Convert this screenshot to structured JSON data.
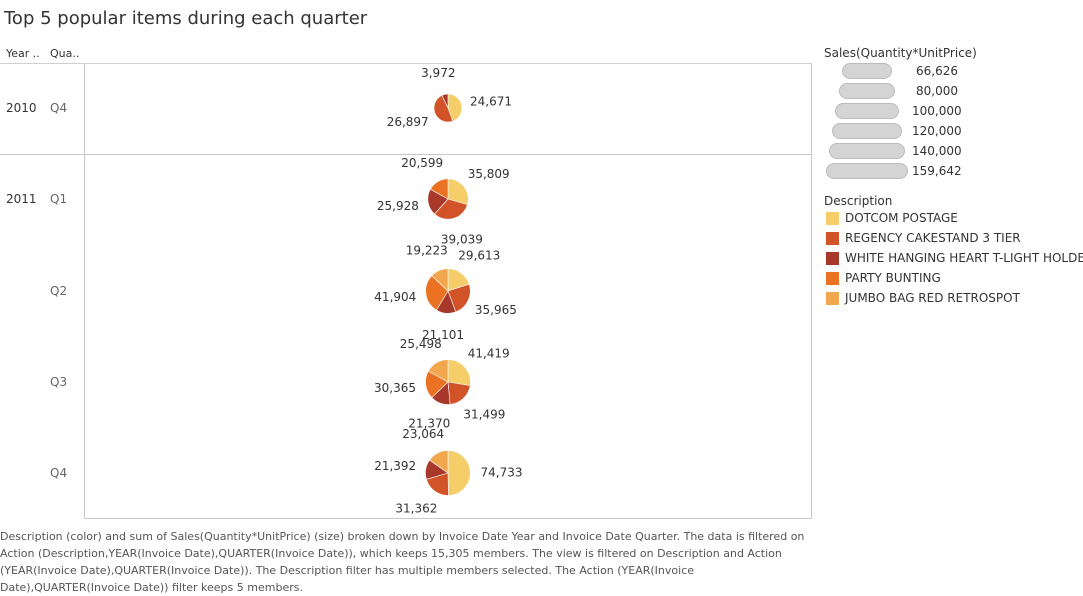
{
  "title": "Top 5 popular items during each quarter",
  "columns": {
    "year": "Year ..",
    "quarter": "Qua.."
  },
  "colors": {
    "DOTCOM POSTAGE": "#f5ce6a",
    "REGENCY CAKESTAND 3 TIER": "#d25327",
    "WHITE HANGING HEART T-LIGHT HOLDER": "#a8392a",
    "PARTY BUNTING": "#ea7222",
    "JUMBO BAG RED RETROSPOT": "#f2a64e"
  },
  "size_legend": {
    "title": "Sales(Quantity*UnitPrice)",
    "values": [
      "66,626",
      "80,000",
      "100,000",
      "120,000",
      "140,000",
      "159,642"
    ]
  },
  "color_legend": {
    "title": "Description",
    "items": [
      "DOTCOM POSTAGE",
      "REGENCY CAKESTAND 3 TIER",
      "WHITE HANGING HEART T-LIGHT HOLDER",
      "PARTY BUNTING",
      "JUMBO BAG RED RETROSPOT"
    ]
  },
  "chart_data": {
    "type": "pie",
    "title": "Top 5 popular items during each quarter",
    "size_measure": "Sales(Quantity*UnitPrice)",
    "color_dimension": "Description",
    "rows": [
      {
        "year": "2010",
        "quarter": "Q4",
        "slices": [
          {
            "name": "DOTCOM POSTAGE",
            "value": 24671,
            "label": "24,671"
          },
          {
            "name": "REGENCY CAKESTAND 3 TIER",
            "value": 26897,
            "label": "26,897"
          },
          {
            "name": "WHITE HANGING HEART T-LIGHT HOLDER",
            "value": 3972,
            "label": "3,972"
          }
        ]
      },
      {
        "year": "2011",
        "quarter": "Q1",
        "slices": [
          {
            "name": "DOTCOM POSTAGE",
            "value": 35809,
            "label": "35,809"
          },
          {
            "name": "REGENCY CAKESTAND 3 TIER",
            "value": 39039,
            "label": "39,039"
          },
          {
            "name": "WHITE HANGING HEART T-LIGHT HOLDER",
            "value": 25928,
            "label": "25,928"
          },
          {
            "name": "PARTY BUNTING",
            "value": 20599,
            "label": "20,599"
          }
        ]
      },
      {
        "year": "",
        "quarter": "Q2",
        "slices": [
          {
            "name": "DOTCOM POSTAGE",
            "value": 29613,
            "label": "29,613"
          },
          {
            "name": "REGENCY CAKESTAND 3 TIER",
            "value": 35965,
            "label": "35,965"
          },
          {
            "name": "WHITE HANGING HEART T-LIGHT HOLDER",
            "value": 21101,
            "label": "21,101"
          },
          {
            "name": "PARTY BUNTING",
            "value": 41904,
            "label": "41,904"
          },
          {
            "name": "JUMBO BAG RED RETROSPOT",
            "value": 19223,
            "label": "19,223"
          }
        ]
      },
      {
        "year": "",
        "quarter": "Q3",
        "slices": [
          {
            "name": "DOTCOM POSTAGE",
            "value": 41419,
            "label": "41,419"
          },
          {
            "name": "REGENCY CAKESTAND 3 TIER",
            "value": 31499,
            "label": "31,499"
          },
          {
            "name": "WHITE HANGING HEART T-LIGHT HOLDER",
            "value": 21370,
            "label": "21,370"
          },
          {
            "name": "PARTY BUNTING",
            "value": 30365,
            "label": "30,365"
          },
          {
            "name": "JUMBO BAG RED RETROSPOT",
            "value": 25498,
            "label": "25,498"
          }
        ]
      },
      {
        "year": "",
        "quarter": "Q4",
        "slices": [
          {
            "name": "DOTCOM POSTAGE",
            "value": 74733,
            "label": "74,733"
          },
          {
            "name": "REGENCY CAKESTAND 3 TIER",
            "value": 31362,
            "label": "31,362"
          },
          {
            "name": "WHITE HANGING HEART T-LIGHT HOLDER",
            "value": 21392,
            "label": "21,392"
          },
          {
            "name": "JUMBO BAG RED RETROSPOT",
            "value": 23064,
            "label": "23,064"
          }
        ]
      }
    ]
  },
  "caption": "Description (color) and sum of Sales(Quantity*UnitPrice) (size) broken down by Invoice Date Year and Invoice Date Quarter. The data is filtered on Action (Description,YEAR(Invoice Date),QUARTER(Invoice Date)), which keeps 15,305 members. The view is filtered on Description and Action (YEAR(Invoice Date),QUARTER(Invoice Date)). The Description filter has multiple members selected. The Action (YEAR(Invoice Date),QUARTER(Invoice Date)) filter keeps 5 members."
}
